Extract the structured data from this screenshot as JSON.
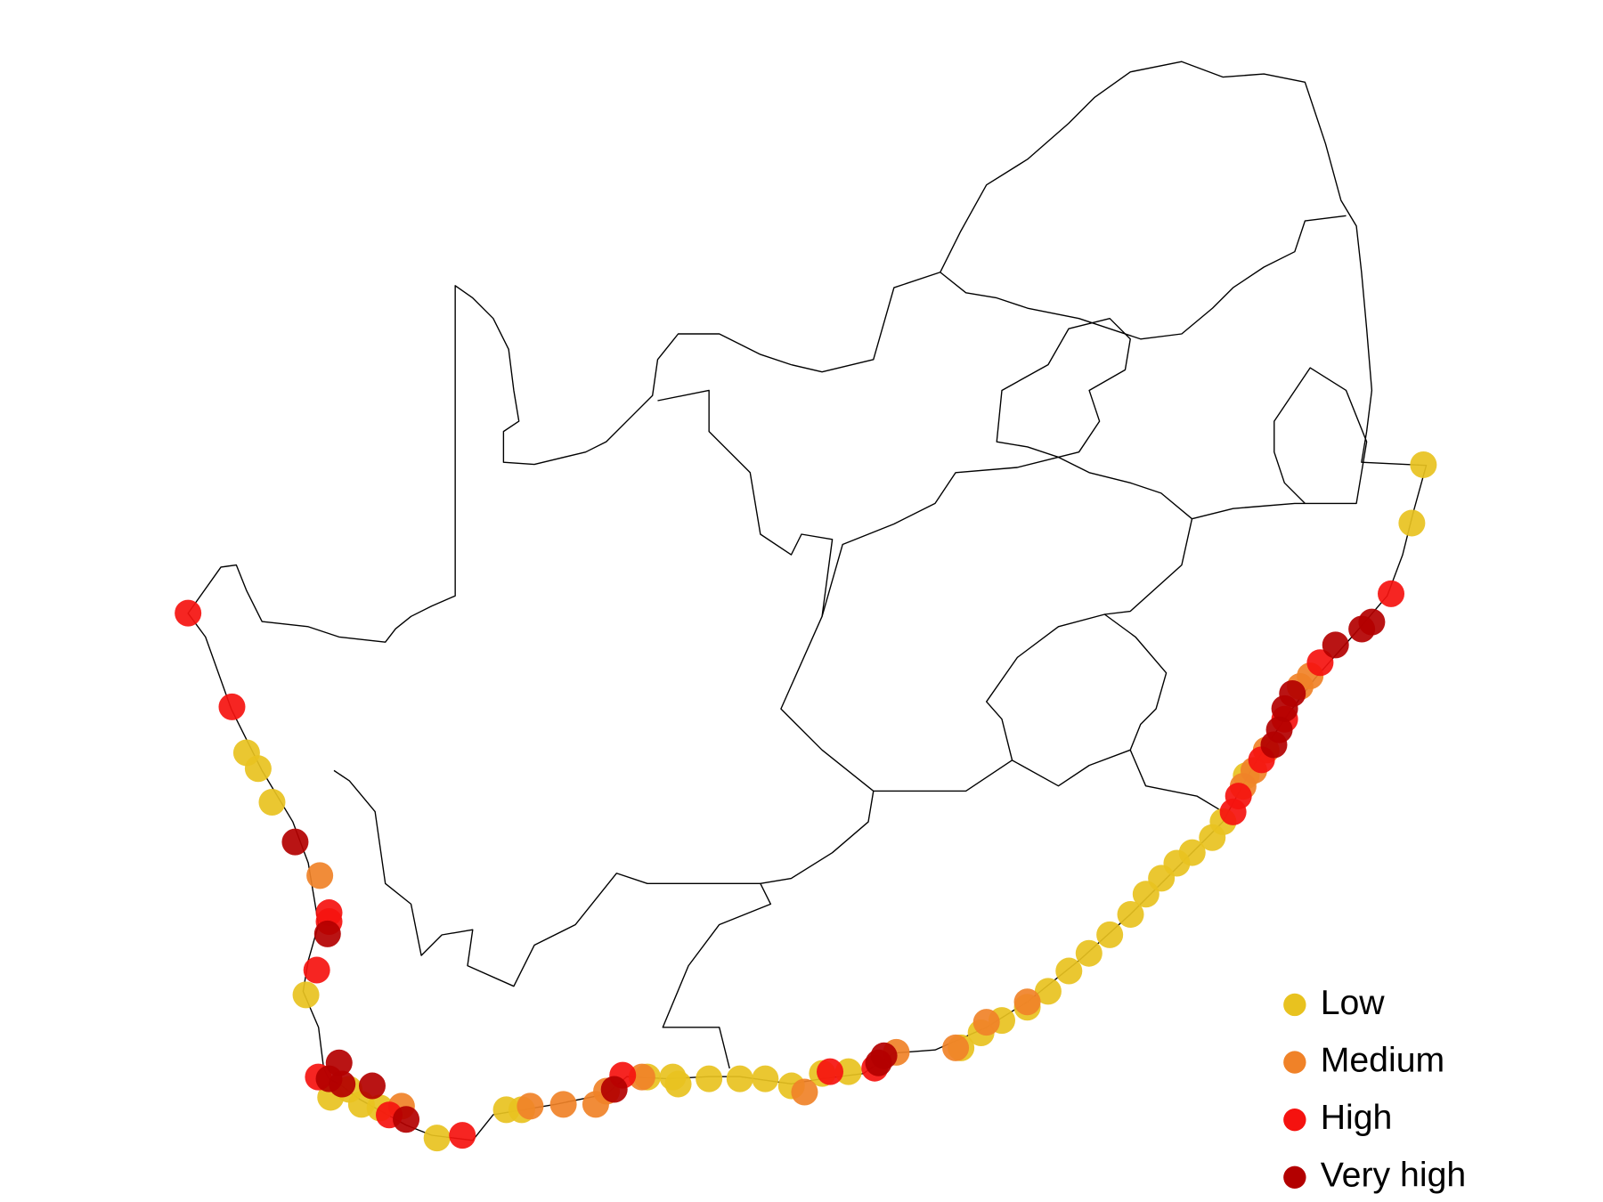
{
  "chart_data": {
    "type": "point-map",
    "series": [
      {
        "name": "Low",
        "color": "#e8c21f",
        "points": [
          [
            32.97,
            -27.56
          ],
          [
            32.82,
            -28.22
          ],
          [
            17.7,
            -30.82
          ],
          [
            17.85,
            -31.0
          ],
          [
            18.03,
            -31.38
          ],
          [
            18.47,
            -33.56
          ],
          [
            18.79,
            -34.72
          ],
          [
            19.03,
            -34.63
          ],
          [
            19.19,
            -34.8
          ],
          [
            19.43,
            -34.84
          ],
          [
            20.17,
            -35.18
          ],
          [
            21.07,
            -34.86
          ],
          [
            21.27,
            -34.86
          ],
          [
            22.9,
            -34.49
          ],
          [
            23.23,
            -34.49
          ],
          [
            23.3,
            -34.57
          ],
          [
            23.7,
            -34.51
          ],
          [
            24.1,
            -34.51
          ],
          [
            24.43,
            -34.51
          ],
          [
            24.77,
            -34.59
          ],
          [
            25.17,
            -34.45
          ],
          [
            25.51,
            -34.43
          ],
          [
            26.97,
            -34.16
          ],
          [
            27.23,
            -33.99
          ],
          [
            27.5,
            -33.85
          ],
          [
            27.83,
            -33.7
          ],
          [
            28.1,
            -33.52
          ],
          [
            28.37,
            -33.29
          ],
          [
            28.63,
            -33.09
          ],
          [
            28.9,
            -32.88
          ],
          [
            29.17,
            -32.65
          ],
          [
            29.37,
            -32.42
          ],
          [
            29.57,
            -32.24
          ],
          [
            29.77,
            -32.07
          ],
          [
            29.97,
            -31.95
          ],
          [
            30.23,
            -31.78
          ],
          [
            30.37,
            -31.6
          ],
          [
            30.67,
            -31.08
          ]
        ]
      },
      {
        "name": "Medium",
        "color": "#f08228",
        "points": [
          [
            18.65,
            -32.21
          ],
          [
            19.71,
            -34.82
          ],
          [
            21.38,
            -34.82
          ],
          [
            21.81,
            -34.8
          ],
          [
            22.23,
            -34.8
          ],
          [
            22.37,
            -34.65
          ],
          [
            22.83,
            -34.49
          ],
          [
            24.94,
            -34.66
          ],
          [
            26.13,
            -34.21
          ],
          [
            26.9,
            -34.16
          ],
          [
            27.3,
            -33.87
          ],
          [
            27.83,
            -33.64
          ],
          [
            30.63,
            -31.2
          ],
          [
            30.77,
            -31.02
          ],
          [
            30.93,
            -30.79
          ],
          [
            31.37,
            -30.07
          ],
          [
            31.5,
            -29.95
          ]
        ]
      },
      {
        "name": "High",
        "color": "#f5120f",
        "points": [
          [
            16.94,
            -29.24
          ],
          [
            17.51,
            -30.3
          ],
          [
            18.77,
            -32.63
          ],
          [
            18.77,
            -32.73
          ],
          [
            18.61,
            -33.28
          ],
          [
            18.63,
            -34.49
          ],
          [
            19.55,
            -34.92
          ],
          [
            20.5,
            -35.15
          ],
          [
            22.58,
            -34.47
          ],
          [
            25.27,
            -34.43
          ],
          [
            25.85,
            -34.39
          ],
          [
            32.55,
            -29.02
          ],
          [
            31.63,
            -29.8
          ],
          [
            31.17,
            -30.44
          ],
          [
            30.87,
            -30.9
          ],
          [
            30.57,
            -31.31
          ],
          [
            30.5,
            -31.49
          ]
        ]
      },
      {
        "name": "Very high",
        "color": "#b30000",
        "points": [
          [
            18.33,
            -31.83
          ],
          [
            18.75,
            -32.87
          ],
          [
            18.9,
            -34.33
          ],
          [
            18.77,
            -34.51
          ],
          [
            18.94,
            -34.57
          ],
          [
            19.33,
            -34.59
          ],
          [
            19.77,
            -34.97
          ],
          [
            22.47,
            -34.63
          ],
          [
            25.9,
            -34.33
          ],
          [
            25.97,
            -34.25
          ],
          [
            32.3,
            -29.34
          ],
          [
            32.17,
            -29.42
          ],
          [
            31.83,
            -29.6
          ],
          [
            31.27,
            -30.15
          ],
          [
            31.17,
            -30.32
          ],
          [
            31.1,
            -30.56
          ],
          [
            31.03,
            -30.73
          ]
        ]
      }
    ]
  }
}
